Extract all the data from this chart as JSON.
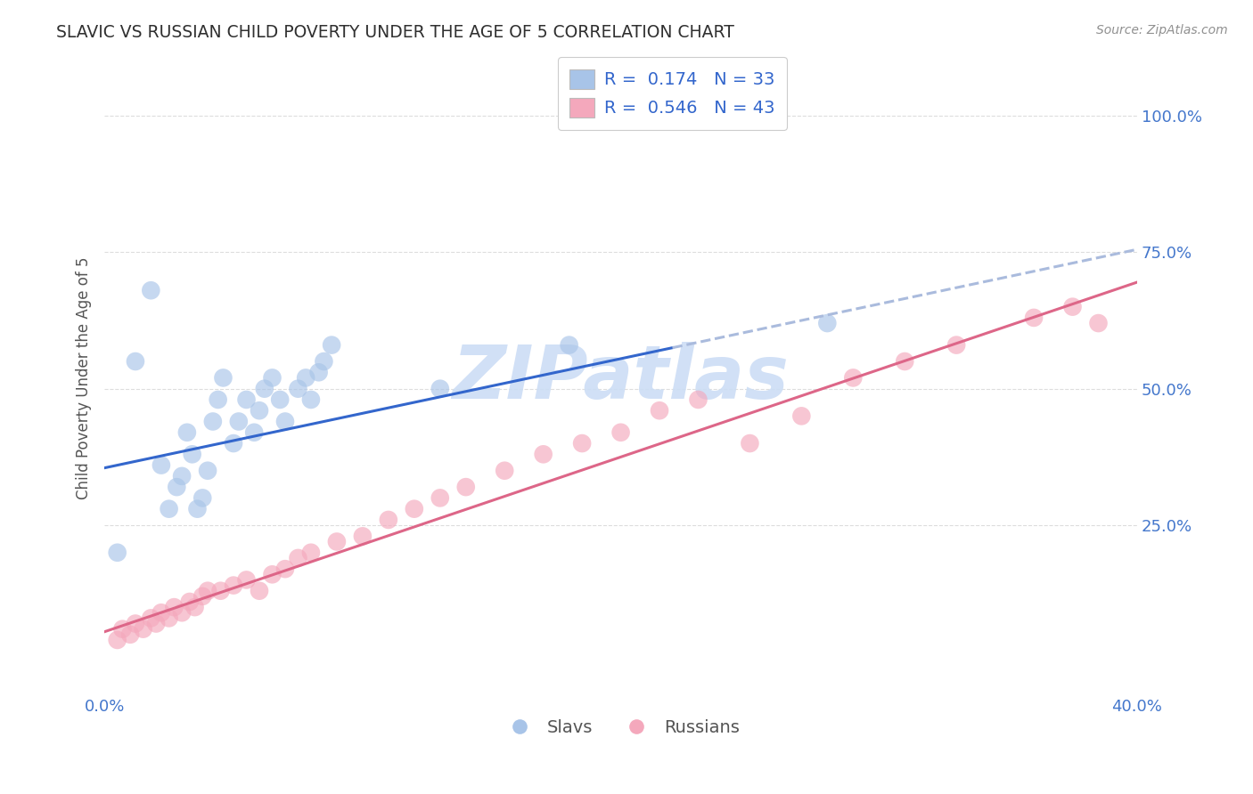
{
  "title": "SLAVIC VS RUSSIAN CHILD POVERTY UNDER THE AGE OF 5 CORRELATION CHART",
  "source_text": "Source: ZipAtlas.com",
  "ylabel": "Child Poverty Under the Age of 5",
  "slavs_R": 0.174,
  "slavs_N": 33,
  "russians_R": 0.546,
  "russians_N": 43,
  "slavs_color": "#a8c4e8",
  "russians_color": "#f4a8bc",
  "slavs_trend_color": "#3366cc",
  "slavs_trend_dashed_color": "#aabbdd",
  "russians_trend_color": "#dd6688",
  "legend_text_color": "#3366cc",
  "watermark_color": "#ccddf5",
  "bg_color": "#ffffff",
  "grid_color": "#dddddd",
  "title_color": "#303030",
  "tick_color": "#4477cc",
  "slavs_x": [
    0.005,
    0.012,
    0.018,
    0.022,
    0.025,
    0.028,
    0.03,
    0.032,
    0.034,
    0.036,
    0.038,
    0.04,
    0.042,
    0.044,
    0.046,
    0.05,
    0.052,
    0.055,
    0.058,
    0.06,
    0.062,
    0.065,
    0.068,
    0.07,
    0.075,
    0.078,
    0.08,
    0.083,
    0.085,
    0.088,
    0.13,
    0.18,
    0.28
  ],
  "slavs_y": [
    0.2,
    0.55,
    0.68,
    0.36,
    0.28,
    0.32,
    0.34,
    0.42,
    0.38,
    0.28,
    0.3,
    0.35,
    0.44,
    0.48,
    0.52,
    0.4,
    0.44,
    0.48,
    0.42,
    0.46,
    0.5,
    0.52,
    0.48,
    0.44,
    0.5,
    0.52,
    0.48,
    0.53,
    0.55,
    0.58,
    0.5,
    0.58,
    0.62
  ],
  "russians_x": [
    0.005,
    0.007,
    0.01,
    0.012,
    0.015,
    0.018,
    0.02,
    0.022,
    0.025,
    0.027,
    0.03,
    0.033,
    0.035,
    0.038,
    0.04,
    0.045,
    0.05,
    0.055,
    0.06,
    0.065,
    0.07,
    0.075,
    0.08,
    0.09,
    0.1,
    0.11,
    0.12,
    0.13,
    0.14,
    0.155,
    0.17,
    0.185,
    0.2,
    0.215,
    0.23,
    0.25,
    0.27,
    0.29,
    0.31,
    0.33,
    0.36,
    0.375,
    0.385
  ],
  "russians_y": [
    0.04,
    0.06,
    0.05,
    0.07,
    0.06,
    0.08,
    0.07,
    0.09,
    0.08,
    0.1,
    0.09,
    0.11,
    0.1,
    0.12,
    0.13,
    0.13,
    0.14,
    0.15,
    0.13,
    0.16,
    0.17,
    0.19,
    0.2,
    0.22,
    0.23,
    0.26,
    0.28,
    0.3,
    0.32,
    0.35,
    0.38,
    0.4,
    0.42,
    0.46,
    0.48,
    0.4,
    0.45,
    0.52,
    0.55,
    0.58,
    0.63,
    0.65,
    0.62
  ],
  "slavs_trend_intercept": 0.355,
  "slavs_trend_slope": 1.0,
  "russians_trend_intercept": 0.055,
  "russians_trend_slope": 1.6,
  "xlim": [
    0.0,
    0.4
  ],
  "ylim": [
    -0.06,
    1.1
  ],
  "x_ticks": [
    0.0,
    0.1,
    0.2,
    0.3,
    0.4
  ],
  "x_tick_labels": [
    "0.0%",
    "",
    "",
    "",
    "40.0%"
  ],
  "y_ticks": [
    0.0,
    0.25,
    0.5,
    0.75,
    1.0
  ],
  "y_tick_labels": [
    "",
    "25.0%",
    "50.0%",
    "75.0%",
    "100.0%"
  ]
}
